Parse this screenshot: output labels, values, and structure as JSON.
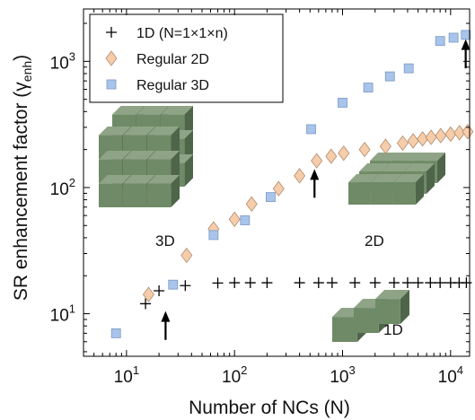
{
  "chart_data": {
    "type": "scatter",
    "xlabel": "Number of NCs (N)",
    "ylabel_main": "SR enhancement factor (",
    "ylabel_gamma": "γ",
    "ylabel_sub": "enh",
    "ylabel_close": ")",
    "xscale": "log",
    "yscale": "log",
    "xlim": [
      4,
      15000
    ],
    "ylim": [
      4.6,
      2600
    ],
    "grid": false,
    "legend_position": "top-left",
    "x_ticks": [
      {
        "value": 10,
        "base": "10",
        "exp": "1"
      },
      {
        "value": 100,
        "base": "10",
        "exp": "2"
      },
      {
        "value": 1000,
        "base": "10",
        "exp": "3"
      },
      {
        "value": 10000,
        "base": "10",
        "exp": "4"
      }
    ],
    "y_ticks": [
      {
        "value": 10,
        "base": "10",
        "exp": "1"
      },
      {
        "value": 100,
        "base": "10",
        "exp": "2"
      },
      {
        "value": 1000,
        "base": "10",
        "exp": "3"
      }
    ],
    "series": [
      {
        "name": "1D (N=1×1×n)",
        "marker": "plus",
        "color": "#000000",
        "points": [
          [
            15,
            12
          ],
          [
            20,
            15.2
          ],
          [
            35,
            16.7
          ],
          [
            70,
            17.5
          ],
          [
            100,
            17.6
          ],
          [
            140,
            17.6
          ],
          [
            200,
            17.6
          ],
          [
            400,
            17.6
          ],
          [
            600,
            17.6
          ],
          [
            800,
            17.6
          ],
          [
            1300,
            17.6
          ],
          [
            2000,
            17.6
          ],
          [
            3000,
            17.6
          ],
          [
            4000,
            17.6
          ],
          [
            5000,
            17.6
          ],
          [
            6500,
            17.6
          ],
          [
            8000,
            17.6
          ],
          [
            10000,
            17.6
          ],
          [
            12000,
            17.6
          ],
          [
            14000,
            17.6
          ]
        ]
      },
      {
        "name": "Regular 2D",
        "marker": "diamond",
        "color": "#f6cdaa",
        "points": [
          [
            16,
            14.2
          ],
          [
            36,
            29
          ],
          [
            64,
            47
          ],
          [
            100,
            56
          ],
          [
            144,
            74
          ],
          [
            256,
            98
          ],
          [
            400,
            124
          ],
          [
            576,
            163
          ],
          [
            784,
            177
          ],
          [
            1024,
            187
          ],
          [
            1600,
            200
          ],
          [
            2500,
            212
          ],
          [
            3600,
            225
          ],
          [
            4500,
            234
          ],
          [
            5500,
            243
          ],
          [
            6600,
            250
          ],
          [
            8100,
            258
          ],
          [
            10000,
            265
          ],
          [
            12100,
            272
          ],
          [
            14400,
            277
          ]
        ]
      },
      {
        "name": "Regular 3D",
        "marker": "square",
        "color": "#a8c4ea",
        "points": [
          [
            8,
            7
          ],
          [
            27,
            17
          ],
          [
            64,
            42
          ],
          [
            125,
            55
          ],
          [
            216,
            84
          ],
          [
            512,
            290
          ],
          [
            1000,
            470
          ],
          [
            1728,
            620
          ],
          [
            2744,
            760
          ],
          [
            4096,
            880
          ],
          [
            8000,
            1450
          ],
          [
            10648,
            1540
          ],
          [
            13824,
            1620
          ]
        ]
      }
    ],
    "annotations": [
      {
        "text": "3D"
      },
      {
        "text": "2D"
      },
      {
        "text": "1D"
      }
    ],
    "arrows": [
      {
        "x": 23,
        "y_tip": 10.5,
        "y_tail": 6.2
      },
      {
        "x": 550,
        "y_tip": 140,
        "y_tail": 83
      },
      {
        "x": 13800,
        "y_tip": 1500,
        "y_tail": 880
      }
    ]
  }
}
